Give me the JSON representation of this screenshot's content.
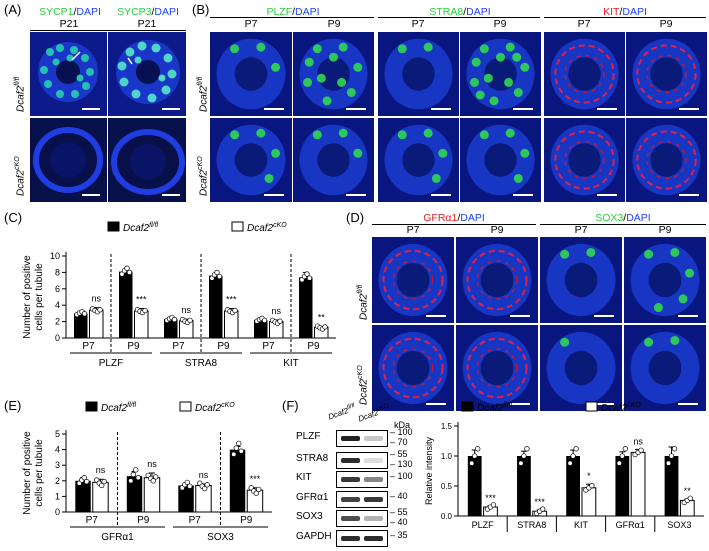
{
  "panels": {
    "A": {
      "letter": "(A)",
      "headers": [
        {
          "stain": "SYCP1",
          "sep": "/",
          "dapi": "DAPI"
        },
        {
          "stain": "SYCP3",
          "sep": "/",
          "dapi": "DAPI"
        }
      ],
      "timepoints": [
        "P21",
        "P21"
      ],
      "rows": [
        "Dcaf2",
        "Dcaf2"
      ],
      "row_sups": [
        "fl/fl",
        "cKO"
      ]
    },
    "B": {
      "letter": "(B)",
      "headers": [
        {
          "stain": "PLZF",
          "sep": "/",
          "dapi": "DAPI"
        },
        {
          "stain": "STRA8",
          "sep": "/",
          "dapi": "DAPI"
        },
        {
          "stain": "KIT",
          "sep": "/",
          "dapi": "DAPI"
        }
      ],
      "timepoints": [
        "P7",
        "P9",
        "P7",
        "P9",
        "P7",
        "P9"
      ],
      "rows": [
        "Dcaf2",
        "Dcaf2"
      ],
      "row_sups": [
        "fl/fl",
        "cKO"
      ]
    },
    "C": {
      "letter": "(C)"
    },
    "D": {
      "letter": "(D)",
      "headers": [
        {
          "stain": "GFRα1",
          "sep": "/",
          "dapi": "DAPI"
        },
        {
          "stain": "SOX3",
          "sep": "/",
          "dapi": "DAPI"
        }
      ],
      "timepoints": [
        "P7",
        "P9",
        "P7",
        "P9"
      ],
      "rows": [
        "Dcaf2",
        "Dcaf2"
      ],
      "row_sups": [
        "fl/fl",
        "cKO"
      ]
    },
    "E": {
      "letter": "(E)"
    },
    "F": {
      "letter": "(F)",
      "blot_labels": [
        "PLZF",
        "STRA8",
        "KIT",
        "GFRα1",
        "SOX3",
        "GAPDH"
      ],
      "kda_label": "kDa",
      "markers": [
        "100",
        "70",
        "55",
        "130",
        "100",
        "40",
        "55",
        "40",
        "35"
      ],
      "lane_labels": [
        {
          "base": "Dcaf2",
          "sup": "fl/fl"
        },
        {
          "base": "Dcaf2",
          "sup": "cKO"
        }
      ]
    }
  },
  "legend": {
    "flfl_base": "Dcaf2",
    "flfl_sup": "fl/fl",
    "cko_base": "Dcaf2",
    "cko_sup": "cKO"
  },
  "colors": {
    "flfl": "#000000",
    "cko": "#ffffff",
    "green": "#2ecc40",
    "red": "#e02020",
    "blue": "#2040ff"
  },
  "chart_data": [
    {
      "id": "C",
      "type": "bar",
      "ylabel_lines": [
        "Number of positive",
        "cells per tubule"
      ],
      "ylim": [
        0,
        10
      ],
      "yticks": [
        "0",
        "2",
        "4",
        "6",
        "8",
        "10"
      ],
      "groups": [
        {
          "marker": "PLZF",
          "timepoints": [
            "P7",
            "P9"
          ],
          "flfl": [
            3.0,
            8.1
          ],
          "cko": [
            3.4,
            3.3
          ],
          "flfl_err": [
            0.2,
            0.3
          ],
          "cko_err": [
            0.3,
            0.3
          ],
          "sig": [
            "ns",
            "***"
          ]
        },
        {
          "marker": "STRA8",
          "timepoints": [
            "P7",
            "P9"
          ],
          "flfl": [
            2.3,
            7.6
          ],
          "cko": [
            2.1,
            3.3
          ],
          "flfl_err": [
            0.2,
            0.2
          ],
          "cko_err": [
            0.2,
            0.3
          ],
          "sig": [
            "ns",
            "***"
          ]
        },
        {
          "marker": "KIT",
          "timepoints": [
            "P7",
            "P9"
          ],
          "flfl": [
            2.2,
            7.4
          ],
          "cko": [
            2.0,
            1.3
          ],
          "flfl_err": [
            0.2,
            0.6
          ],
          "cko_err": [
            0.2,
            0.1
          ],
          "sig": [
            "ns",
            "**"
          ]
        }
      ]
    },
    {
      "id": "E",
      "type": "bar",
      "ylabel_lines": [
        "Number of positive",
        "cells per tubule"
      ],
      "ylim": [
        0,
        5
      ],
      "yticks": [
        "0",
        "1",
        "2",
        "3",
        "4",
        "5"
      ],
      "groups": [
        {
          "marker": "GFRα1",
          "timepoints": [
            "P7",
            "P9"
          ],
          "flfl": [
            2.0,
            2.3
          ],
          "cko": [
            1.9,
            2.2
          ],
          "flfl_err": [
            0.2,
            0.3
          ],
          "cko_err": [
            0.2,
            0.3
          ],
          "sig": [
            "ns",
            "ns"
          ]
        },
        {
          "marker": "SOX3",
          "timepoints": [
            "P7",
            "P9"
          ],
          "flfl": [
            1.7,
            4.0
          ],
          "cko": [
            1.7,
            1.4
          ],
          "flfl_err": [
            0.1,
            0.2
          ],
          "cko_err": [
            0.1,
            0.15
          ],
          "sig": [
            "ns",
            "***"
          ]
        }
      ]
    },
    {
      "id": "F",
      "type": "bar",
      "ylabel": "Relative intensity",
      "ylim": [
        0,
        1.5
      ],
      "yticks": [
        "0.0",
        "0.5",
        "1.0",
        "1.5"
      ],
      "categories": [
        "PLZF",
        "STRA8",
        "KIT",
        "GFRα1",
        "SOX3"
      ],
      "flfl": [
        1.0,
        1.0,
        1.0,
        1.0,
        1.0
      ],
      "cko": [
        0.15,
        0.08,
        0.47,
        1.06,
        0.26
      ],
      "flfl_err": [
        0.1,
        0.08,
        0.1,
        0.07,
        0.15
      ],
      "cko_err": [
        0.02,
        0.02,
        0.06,
        0.05,
        0.02
      ],
      "sig": [
        "***",
        "***",
        "*",
        "ns",
        "**"
      ]
    }
  ]
}
